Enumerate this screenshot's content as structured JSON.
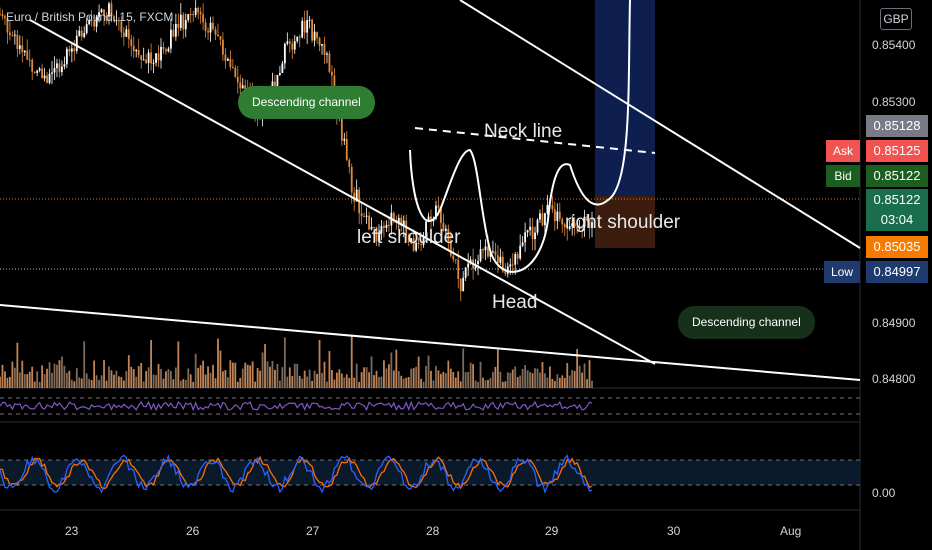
{
  "header": {
    "symbol_title": "Euro / British Pound, 15, FXCM",
    "currency": "GBP"
  },
  "price_scale": {
    "ticks": [
      "0.85400",
      "0.85300",
      "0.84900",
      "0.84800"
    ],
    "oscillator_tick": "0.00"
  },
  "price_tags": {
    "last_high": "0.85128",
    "ask_label": "Ask",
    "ask_value": "0.85125",
    "bid_label": "Bid",
    "bid_value": "0.85122",
    "current_value": "0.85122",
    "countdown": "03:04",
    "orange_value": "0.85035",
    "low_label": "Low",
    "low_value": "0.84997"
  },
  "time_axis": {
    "labels": [
      "23",
      "26",
      "27",
      "28",
      "29",
      "30",
      "Aug"
    ]
  },
  "annotations": {
    "callout_top": "Descending channel",
    "callout_bottom": "Descending channel",
    "neck_line": "Neck line",
    "left_shoulder": "left shoulder",
    "right_shoulder": "right shoulder",
    "head": "Head"
  },
  "colors": {
    "background": "#000000",
    "volume_bars": "#c08457",
    "rsi_line": "#7e57c2",
    "stoch_k": "#2962ff",
    "stoch_d": "#ff6d00",
    "ask": "#f05350",
    "bid": "#1b5e20",
    "current": "#1a6e4d",
    "long_position_target": "#0d1e4f",
    "long_position_stop": "#3b1c0f",
    "callout": "#2e7d32"
  },
  "chart_data": {
    "type": "candlestick",
    "title": "Euro / British Pound, 15, FXCM",
    "ylim": [
      0.8476,
      0.8558
    ],
    "yticks": [
      0.854,
      0.853,
      0.849,
      0.848
    ],
    "x_ticks": [
      "23",
      "26",
      "27",
      "28",
      "29",
      "30",
      "Aug"
    ],
    "current_price": 0.85122,
    "ask": 0.85125,
    "bid": 0.85122,
    "session_low": 0.84997,
    "alert_level": 0.85035,
    "close_approx": [
      0.8555,
      0.8548,
      0.8541,
      0.8546,
      0.8553,
      0.8557,
      0.8549,
      0.8544,
      0.8552,
      0.8556,
      0.8549,
      0.8539,
      0.8534,
      0.8547,
      0.8553,
      0.8545,
      0.8519,
      0.8508,
      0.8512,
      0.8506,
      0.8514,
      0.8498,
      0.8506,
      0.8501,
      0.8508,
      0.8513,
      0.8509,
      0.8512
    ],
    "indicators": [
      "Volume",
      "RSI",
      "Stochastic"
    ],
    "drawings": [
      "Descending channel (two lines)",
      "Neck line (dashed)",
      "Head and shoulders outline",
      "Long position box"
    ]
  }
}
